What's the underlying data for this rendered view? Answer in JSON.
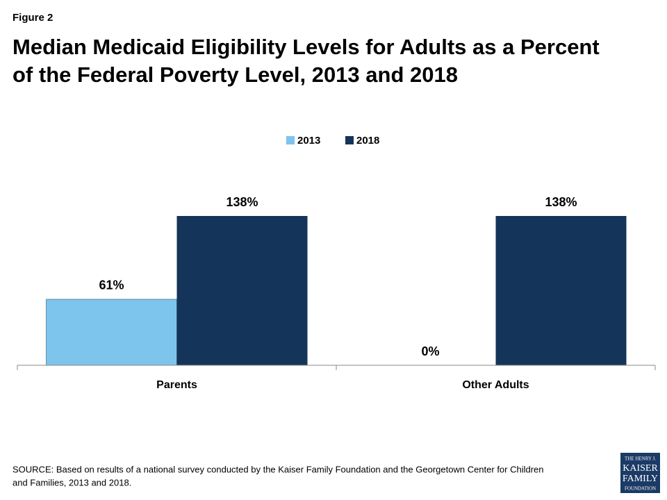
{
  "chart_data": {
    "type": "bar",
    "figure_label": "Figure 2",
    "title": [
      "Median Medicaid Eligibility Levels for Adults as a Percent",
      "of the Federal Poverty Level, 2013 and 2018"
    ],
    "categories": [
      "Parents",
      "Other Adults"
    ],
    "series": [
      {
        "name": "2013",
        "color": "#7dc5ec",
        "values": [
          61,
          0
        ],
        "value_labels": [
          "61%",
          "0%"
        ]
      },
      {
        "name": "2018",
        "color": "#15345a",
        "values": [
          138,
          138
        ],
        "value_labels": [
          "138%",
          "138%"
        ]
      }
    ],
    "source": [
      "SOURCE: Based on results of a national survey conducted by the Kaiser Family Foundation and the Georgetown Center for Children",
      "and Families, 2013 and 2018."
    ],
    "logo": [
      "THE HENRY J.",
      "KAISER",
      "FAMILY",
      "FOUNDATION"
    ]
  }
}
